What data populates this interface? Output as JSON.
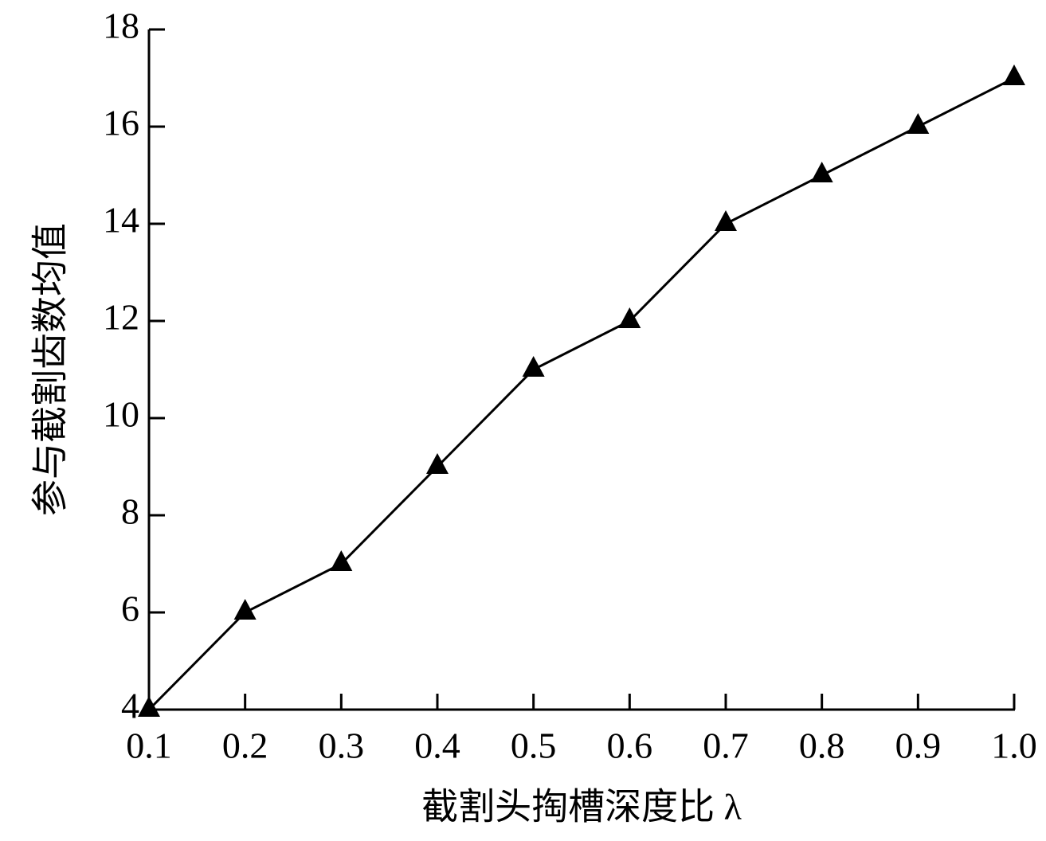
{
  "chart_data": {
    "type": "line",
    "x_label": "截割头掏槽深度比 λ",
    "y_label": "参与截割齿数均值",
    "x": [
      0.1,
      0.2,
      0.3,
      0.4,
      0.5,
      0.6,
      0.7,
      0.8,
      0.9,
      1.0
    ],
    "values": [
      4,
      6,
      7,
      9,
      11,
      12,
      14,
      15,
      16,
      17
    ],
    "color": "#000000",
    "marker": "triangle",
    "xlim": [
      0.1,
      1.0
    ],
    "ylim": [
      4,
      18
    ],
    "xticks": [
      0.1,
      0.2,
      0.3,
      0.4,
      0.5,
      0.6,
      0.7,
      0.8,
      0.9,
      {
        "value": 1,
        "label": "1.0"
      }
    ],
    "yticks": [
      4,
      6,
      8,
      10,
      12,
      14,
      16,
      18
    ],
    "grid": false
  }
}
